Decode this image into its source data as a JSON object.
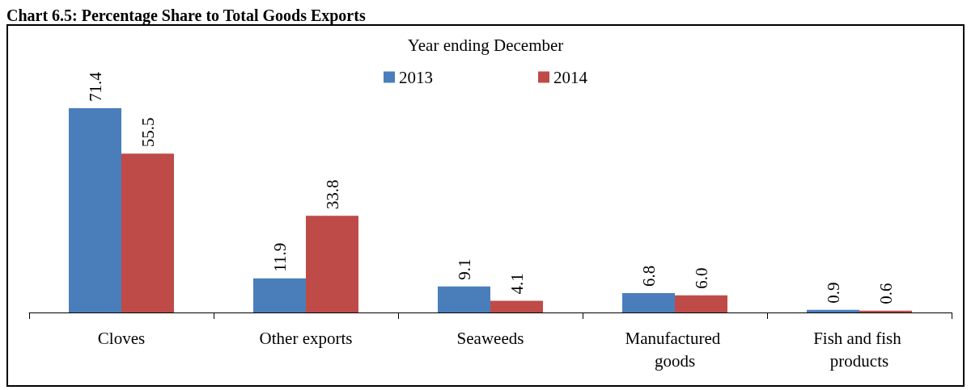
{
  "chart_data": {
    "type": "bar",
    "title": "Chart 6.5: Percentage Share to Total Goods Exports",
    "legend_title": "Year ending December",
    "categories": [
      "Cloves",
      "Other exports",
      "Seaweeds",
      "Manufactured goods",
      "Fish and fish products"
    ],
    "series": [
      {
        "name": "2013",
        "color": "#4a7ebb",
        "values": [
          71.4,
          11.9,
          9.1,
          6.8,
          0.9
        ],
        "value_labels": [
          "71.4",
          "11.9",
          "9.1",
          "6.8",
          "0.9"
        ]
      },
      {
        "name": "2014",
        "color": "#be4b48",
        "values": [
          55.5,
          33.8,
          4.1,
          6.0,
          0.6
        ],
        "value_labels": [
          "55.5",
          "33.8",
          "4.1",
          "6.0",
          "0.6"
        ]
      }
    ],
    "legend": "top",
    "grid": false
  }
}
